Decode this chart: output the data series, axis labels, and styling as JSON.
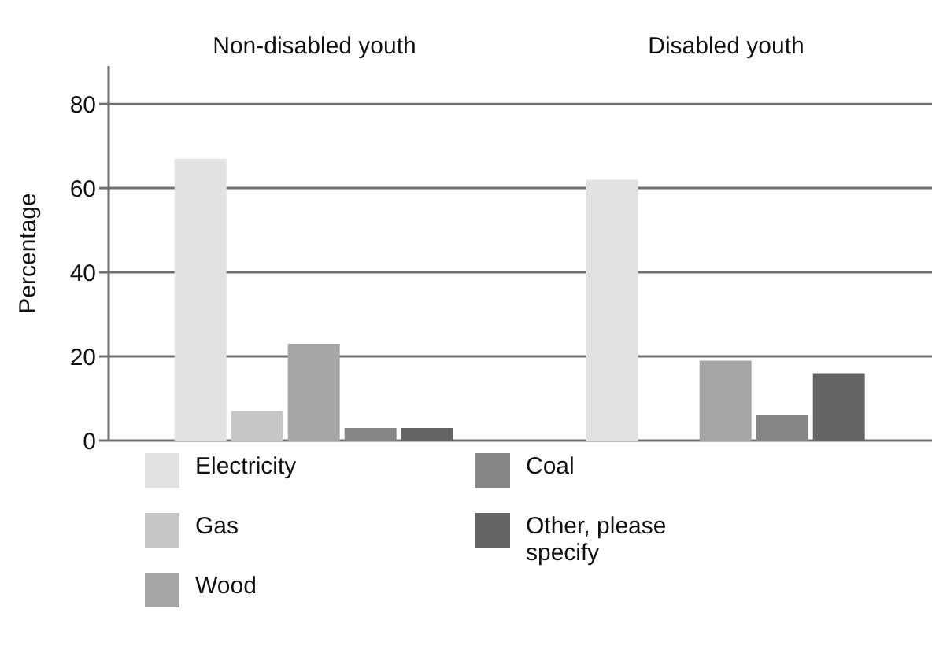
{
  "chart_data": {
    "type": "bar",
    "categories": [
      "Non-disabled youth",
      "Disabled youth"
    ],
    "ylabel": "Percentage",
    "ylim": [
      0,
      89
    ],
    "yticks": [
      0,
      20,
      40,
      60,
      80
    ],
    "grid": "y",
    "legend": "bottom",
    "series": [
      {
        "name": "Electricity",
        "color": "#e2e2e2",
        "values": [
          67,
          62
        ]
      },
      {
        "name": "Gas",
        "color": "#c6c6c6",
        "values": [
          7,
          null
        ]
      },
      {
        "name": "Wood",
        "color": "#a6a6a6",
        "values": [
          23,
          19
        ]
      },
      {
        "name": "Coal",
        "color": "#868686",
        "values": [
          3,
          6
        ]
      },
      {
        "name": "Other, please specify",
        "color": "#646464",
        "values": [
          3,
          16
        ]
      }
    ]
  }
}
